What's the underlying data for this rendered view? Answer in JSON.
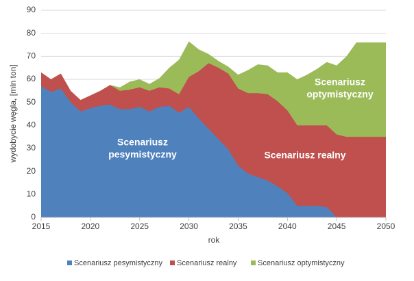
{
  "chart_data": {
    "type": "area",
    "y_label": "wydobycie węgla, [mln ton]",
    "x_label": "rok",
    "x": [
      2015,
      2016,
      2017,
      2018,
      2019,
      2020,
      2021,
      2022,
      2023,
      2024,
      2025,
      2026,
      2027,
      2028,
      2029,
      2030,
      2031,
      2032,
      2033,
      2034,
      2035,
      2036,
      2037,
      2038,
      2039,
      2040,
      2041,
      2042,
      2043,
      2044,
      2045,
      2046,
      2047,
      2048,
      2049,
      2050
    ],
    "xlim": [
      2015,
      2050
    ],
    "xticks": [
      2015,
      2020,
      2025,
      2030,
      2035,
      2040,
      2045,
      2050
    ],
    "ylim": [
      0,
      90
    ],
    "yticks": [
      0,
      10,
      20,
      30,
      40,
      50,
      60,
      70,
      80,
      90
    ],
    "grid": true,
    "legend": "bottom",
    "series": [
      {
        "name": "Scenariusz pesymistyczny",
        "color": "#4f81bd",
        "values": [
          57,
          54.5,
          56,
          50,
          46,
          47.5,
          48.5,
          49,
          47,
          47,
          48,
          46,
          48,
          48.5,
          45.5,
          48,
          43,
          38.5,
          34,
          29.5,
          22.5,
          19,
          17.5,
          16,
          13.5,
          10.5,
          5,
          5,
          5,
          4.5,
          0,
          0,
          0,
          0,
          0,
          0
        ]
      },
      {
        "name": "Scenariusz realny",
        "color": "#c0504d",
        "values": [
          63,
          60,
          62.5,
          55,
          51,
          53,
          55,
          57.5,
          55,
          55.5,
          56.5,
          55,
          56.5,
          56,
          53.5,
          61,
          63.5,
          67,
          65,
          62.5,
          56,
          54,
          54,
          53.5,
          50.5,
          46.5,
          40,
          40,
          40,
          40,
          36,
          35,
          35,
          35,
          35,
          35
        ]
      },
      {
        "name": "Scenariusz optymistyczny",
        "color": "#9bbb59",
        "values": [
          63,
          60,
          62.5,
          55,
          51,
          53,
          55,
          57.5,
          56.5,
          59,
          60,
          58,
          60.5,
          65,
          68.5,
          76.5,
          73,
          71,
          68,
          65.5,
          62,
          64,
          66.5,
          66,
          63,
          63,
          60,
          62,
          64.5,
          67.5,
          66,
          70,
          76,
          76,
          76,
          76
        ]
      }
    ],
    "annotations": [
      {
        "lines": [
          "Scenariusz",
          "pesymistyczny"
        ]
      },
      {
        "lines": [
          "Scenariusz realny"
        ]
      },
      {
        "lines": [
          "Scenariusz",
          "optymistyczny"
        ]
      }
    ]
  }
}
